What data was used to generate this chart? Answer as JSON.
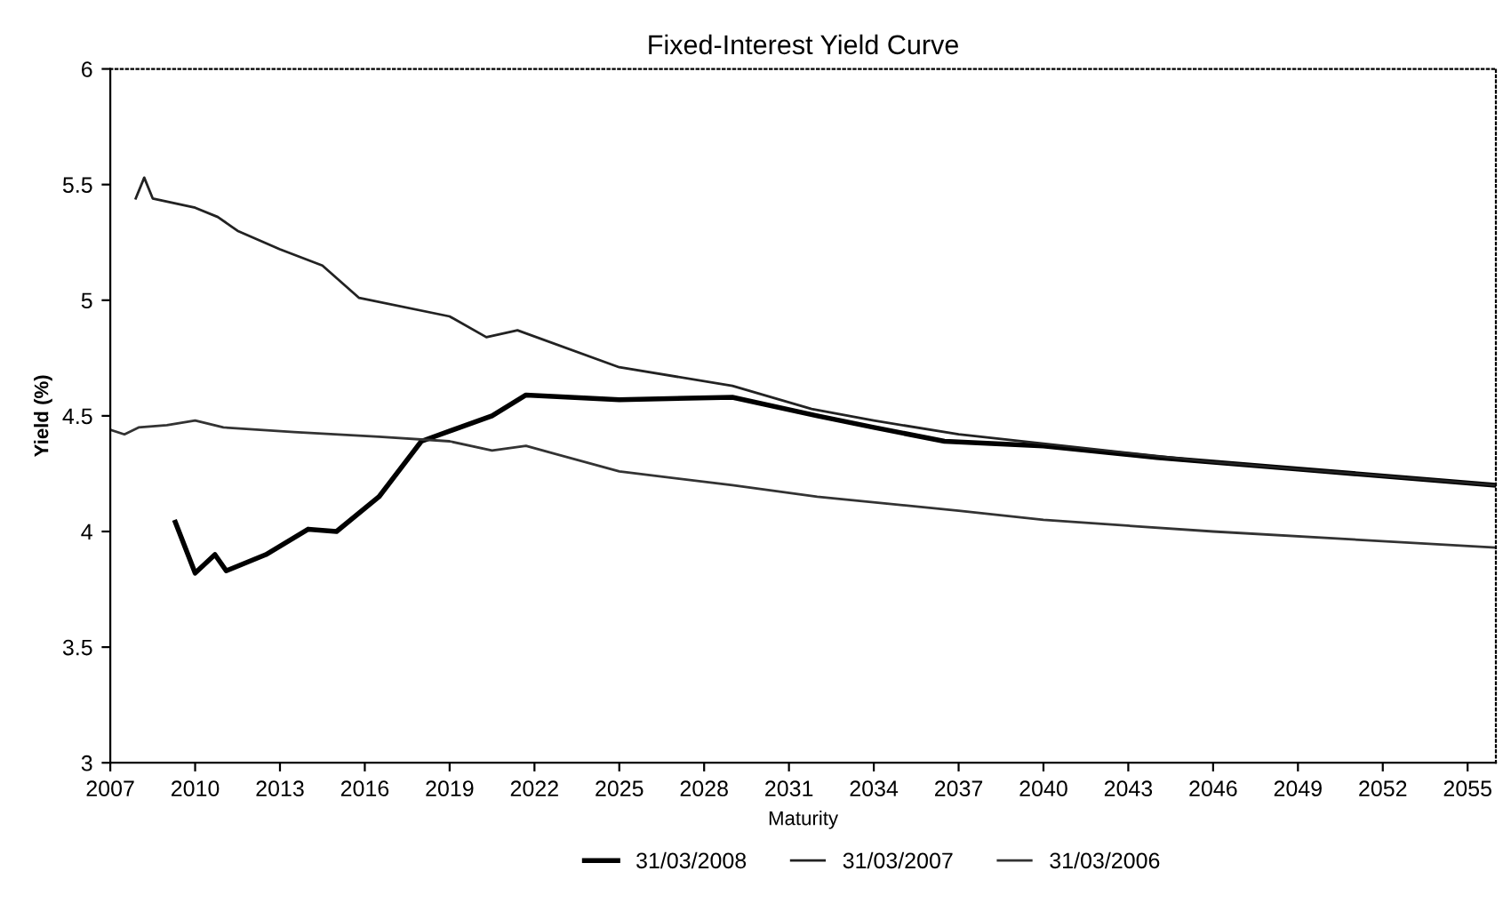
{
  "chart_data": {
    "type": "line",
    "title": "Fixed-Interest Yield Curve",
    "xlabel": "Maturity",
    "ylabel": "Yield (%)",
    "xlim": [
      2007,
      2056
    ],
    "xticks": [
      2007,
      2010,
      2013,
      2016,
      2019,
      2022,
      2025,
      2028,
      2031,
      2034,
      2037,
      2040,
      2043,
      2046,
      2049,
      2052,
      2055
    ],
    "ylim": [
      3,
      6
    ],
    "yticks": [
      3,
      3.5,
      4,
      4.5,
      5,
      5.5,
      6
    ],
    "grid": false,
    "legend": "bottom",
    "marker": "none",
    "line_style": "solid",
    "series": [
      {
        "name": "31/03/2008",
        "color": "#000000",
        "x": [
          2009.3,
          2010.0,
          2010.7,
          2011.1,
          2012.5,
          2014.0,
          2015.0,
          2016.5,
          2018.0,
          2020.5,
          2021.7,
          2025.0,
          2029.0,
          2032.0,
          2034.0,
          2036.5,
          2040.0,
          2044.0,
          2049.0,
          2056.0
        ],
        "values": [
          4.04,
          3.82,
          3.9,
          3.83,
          3.9,
          4.01,
          4.0,
          4.15,
          4.39,
          4.5,
          4.59,
          4.57,
          4.58,
          4.5,
          4.45,
          4.39,
          4.37,
          4.32,
          4.27,
          4.2
        ]
      },
      {
        "name": "31/03/2007",
        "color": "#222222",
        "x": [
          2007.9,
          2008.2,
          2008.5,
          2010.0,
          2010.8,
          2011.5,
          2013.0,
          2014.5,
          2015.8,
          2019.0,
          2020.3,
          2021.4,
          2025.0,
          2029.0,
          2031.8,
          2034.0,
          2037.0,
          2040.0,
          2046.0,
          2056.0
        ],
        "values": [
          5.44,
          5.53,
          5.44,
          5.4,
          5.36,
          5.3,
          5.22,
          5.15,
          5.01,
          4.93,
          4.84,
          4.87,
          4.71,
          4.63,
          4.53,
          4.48,
          4.42,
          4.38,
          4.3,
          4.2
        ]
      },
      {
        "name": "31/03/2006",
        "color": "#333333",
        "x": [
          2007.0,
          2007.5,
          2008.0,
          2009.0,
          2010.0,
          2011.0,
          2013.5,
          2016.5,
          2019.0,
          2020.5,
          2021.7,
          2025.0,
          2029.0,
          2032.0,
          2037.0,
          2040.0,
          2046.0,
          2056.0
        ],
        "values": [
          4.44,
          4.42,
          4.45,
          4.46,
          4.48,
          4.45,
          4.43,
          4.41,
          4.39,
          4.35,
          4.37,
          4.26,
          4.2,
          4.15,
          4.09,
          4.05,
          4.0,
          3.93
        ]
      }
    ]
  }
}
